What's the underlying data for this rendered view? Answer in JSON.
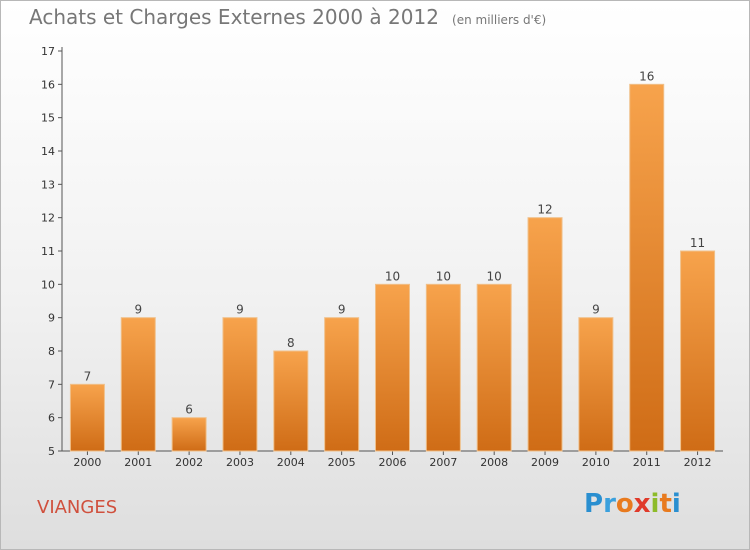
{
  "header": {
    "title": "Achats et Charges Externes 2000 à 2012",
    "unit": "(en milliers d'€)"
  },
  "footer": {
    "commune": "VIANGES",
    "logo_letters": [
      "P",
      "r",
      "o",
      "x",
      "i",
      "t",
      "i"
    ],
    "logo_colors": [
      "#2a8fd0",
      "#3aa0dd",
      "#e87a1e",
      "#e03a2a",
      "#8dbb2a",
      "#e87a1e",
      "#2a8fd0"
    ]
  },
  "chart_data": {
    "type": "bar",
    "title": "Achats et Charges Externes 2000 à 2012",
    "subtitle": "(en milliers d'€)",
    "xlabel": "",
    "ylabel": "",
    "categories": [
      "2000",
      "2001",
      "2002",
      "2003",
      "2004",
      "2005",
      "2006",
      "2007",
      "2008",
      "2009",
      "2010",
      "2011",
      "2012"
    ],
    "values": [
      7,
      9,
      6,
      9,
      8,
      9,
      10,
      10,
      10,
      12,
      9,
      16,
      11
    ],
    "ylim": [
      5,
      17
    ],
    "yticks": [
      5,
      6,
      7,
      8,
      9,
      10,
      11,
      12,
      13,
      14,
      15,
      16,
      17
    ],
    "grid": false,
    "legend": "none",
    "bar_color_top": "#f7a34c",
    "bar_color_bottom": "#cf6c16",
    "bar_edge": "#f0c08a"
  }
}
